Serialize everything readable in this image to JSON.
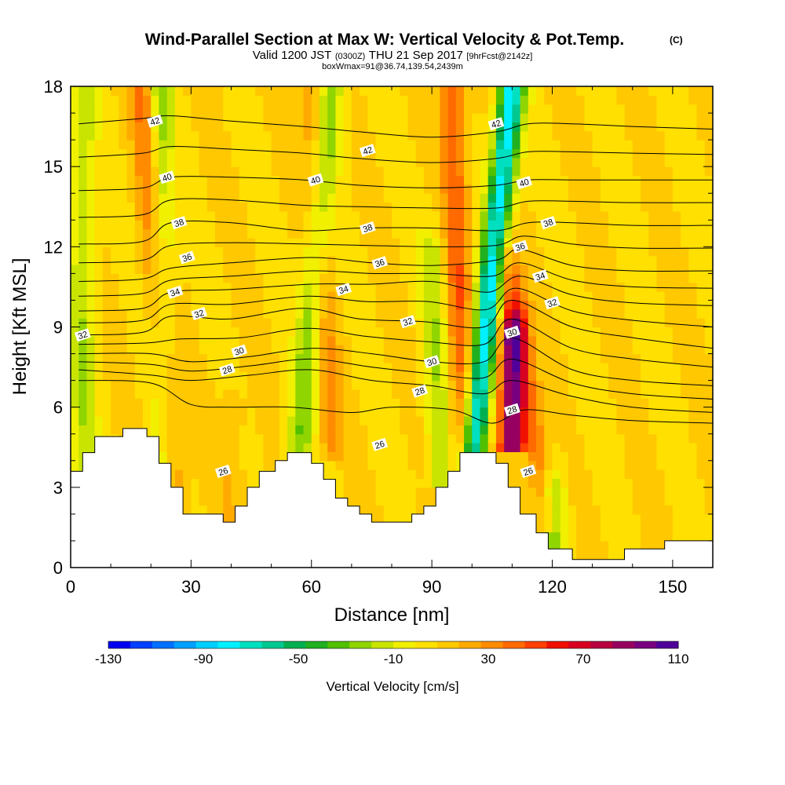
{
  "header": {
    "title": "Wind-Parallel Section at Max W: Vertical Velocity & Pot.Temp.",
    "copyright": "(C)",
    "valid_prefix": "Valid 1200 JST",
    "valid_z": "(0300Z)",
    "valid_date": "THU 21 Sep 2017",
    "forecast": "[9hrFcst@2142z]",
    "boxwmax": "boxWmax=91@36.74,139.54,2439m"
  },
  "chart_data": {
    "type": "heatmap",
    "title": "Wind-Parallel Section at Max W: Vertical Velocity & Pot.Temp.",
    "xlabel": "Distance [nm]",
    "ylabel": "Height [Kft MSL]",
    "xlim": [
      0,
      160
    ],
    "ylim": [
      0,
      18
    ],
    "x_ticks": [
      0,
      30,
      60,
      90,
      120,
      150
    ],
    "y_ticks": [
      0,
      3,
      6,
      9,
      12,
      15,
      18
    ],
    "colorbar": {
      "label": "Vertical Velocity [cm/s]",
      "tick_labels": [
        "-130",
        "-90",
        "-50",
        "-10",
        "30",
        "70",
        "110"
      ],
      "range": [
        -130,
        110
      ],
      "colors": [
        "#0000f0",
        "#0040ff",
        "#0070ff",
        "#00a0ff",
        "#00d0ff",
        "#00f0ff",
        "#00e0c0",
        "#00c890",
        "#00b050",
        "#20b020",
        "#50c000",
        "#90d400",
        "#c8e400",
        "#f0f000",
        "#ffe000",
        "#ffc800",
        "#ffaa00",
        "#ff8c00",
        "#ff6a00",
        "#ff4000",
        "#f01000",
        "#d80020",
        "#b80040",
        "#980060",
        "#780080",
        "#50009a"
      ]
    },
    "updrafts": [
      {
        "x_bottom": 25,
        "y_bottom": 3.0,
        "x_top": 18,
        "y_top": 18,
        "w": 35
      },
      {
        "x_bottom": 98,
        "y_bottom": 4.0,
        "x_top": 95,
        "y_top": 18,
        "w": 35
      },
      {
        "x_bottom": 110,
        "y_bottom": 5.5,
        "x_top": 110,
        "y_top": 9,
        "w": 85
      },
      {
        "x_bottom": 118,
        "y_bottom": 2.5,
        "x_top": 108,
        "y_top": 12,
        "w": 30
      },
      {
        "x_bottom": 65,
        "y_bottom": 5.0,
        "x_top": 60,
        "y_top": 18,
        "w": 20
      },
      {
        "x_bottom": 40,
        "y_bottom": 2.5,
        "x_top": 40,
        "y_top": 6,
        "w": 10
      }
    ],
    "downdrafts": [
      {
        "x_bottom": 100,
        "y_bottom": 4.0,
        "x_top": 110,
        "y_top": 18,
        "w": -90
      },
      {
        "x_bottom": 23,
        "y_bottom": 4.0,
        "x_top": 22,
        "y_top": 18,
        "w": -35
      },
      {
        "x_bottom": 57,
        "y_bottom": 4.5,
        "x_top": 65,
        "y_top": 18,
        "w": -35
      },
      {
        "x_bottom": 92,
        "y_bottom": 4.0,
        "x_top": 90,
        "y_top": 12,
        "w": -25
      },
      {
        "x_bottom": 120,
        "y_bottom": 0.5,
        "x_top": 120,
        "y_top": 3,
        "w": -35
      },
      {
        "x_bottom": 3,
        "y_bottom": 3.0,
        "x_top": 3,
        "y_top": 18,
        "w": -25
      }
    ],
    "terrain": [
      [
        0,
        3.6
      ],
      [
        3,
        3.6
      ],
      [
        3,
        4.3
      ],
      [
        6,
        4.3
      ],
      [
        6,
        4.9
      ],
      [
        13,
        4.9
      ],
      [
        13,
        5.2
      ],
      [
        19,
        5.2
      ],
      [
        19,
        4.9
      ],
      [
        22,
        4.9
      ],
      [
        22,
        3.9
      ],
      [
        25,
        3.9
      ],
      [
        25,
        3.0
      ],
      [
        28,
        3.0
      ],
      [
        28,
        2.0
      ],
      [
        38,
        2.0
      ],
      [
        38,
        1.7
      ],
      [
        41,
        1.7
      ],
      [
        41,
        2.3
      ],
      [
        44,
        2.3
      ],
      [
        44,
        3.0
      ],
      [
        47,
        3.0
      ],
      [
        47,
        3.6
      ],
      [
        51,
        3.6
      ],
      [
        51,
        4.0
      ],
      [
        54,
        4.0
      ],
      [
        54,
        4.3
      ],
      [
        60,
        4.3
      ],
      [
        60,
        3.9
      ],
      [
        63,
        3.9
      ],
      [
        63,
        3.3
      ],
      [
        66,
        3.3
      ],
      [
        66,
        2.6
      ],
      [
        69,
        2.6
      ],
      [
        69,
        2.3
      ],
      [
        72,
        2.3
      ],
      [
        72,
        2.0
      ],
      [
        75,
        2.0
      ],
      [
        75,
        1.7
      ],
      [
        85,
        1.7
      ],
      [
        85,
        2.0
      ],
      [
        88,
        2.0
      ],
      [
        88,
        2.3
      ],
      [
        91,
        2.3
      ],
      [
        91,
        3.0
      ],
      [
        94,
        3.0
      ],
      [
        94,
        3.6
      ],
      [
        97,
        3.6
      ],
      [
        97,
        4.3
      ],
      [
        106,
        4.3
      ],
      [
        106,
        3.9
      ],
      [
        109,
        3.9
      ],
      [
        109,
        3.0
      ],
      [
        112,
        3.0
      ],
      [
        112,
        2.0
      ],
      [
        116,
        2.0
      ],
      [
        116,
        1.3
      ],
      [
        119,
        1.3
      ],
      [
        119,
        0.7
      ],
      [
        125,
        0.7
      ],
      [
        125,
        0.3
      ],
      [
        138,
        0.3
      ],
      [
        138,
        0.7
      ],
      [
        148,
        0.7
      ],
      [
        148,
        1.0
      ],
      [
        160,
        1.0
      ]
    ],
    "theta_levels": [
      26,
      27,
      28,
      29,
      30,
      31,
      32,
      33,
      34,
      35,
      36,
      37,
      38,
      39,
      40,
      41,
      42,
      43,
      44
    ],
    "theta_contours": [
      {
        "theta": 26,
        "label": "26",
        "points": [
          [
            2,
            7.0
          ],
          [
            20,
            6.9
          ],
          [
            30,
            6.1
          ],
          [
            40,
            6.0
          ],
          [
            55,
            6.0
          ],
          [
            70,
            5.8
          ],
          [
            80,
            6.0
          ],
          [
            95,
            5.9
          ],
          [
            105,
            5.4
          ],
          [
            113,
            5.9
          ],
          [
            125,
            5.7
          ],
          [
            140,
            5.5
          ],
          [
            160,
            5.4
          ]
        ]
      },
      {
        "theta": 28,
        "label": "28",
        "points": [
          [
            2,
            7.4
          ],
          [
            20,
            7.2
          ],
          [
            30,
            7.0
          ],
          [
            45,
            7.2
          ],
          [
            60,
            7.4
          ],
          [
            75,
            7.0
          ],
          [
            90,
            6.8
          ],
          [
            103,
            6.5
          ],
          [
            110,
            7.0
          ],
          [
            125,
            6.4
          ],
          [
            140,
            6.0
          ],
          [
            160,
            5.8
          ]
        ]
      },
      {
        "theta": 30,
        "label": "30",
        "points": [
          [
            2,
            8.0
          ],
          [
            20,
            8.0
          ],
          [
            30,
            7.7
          ],
          [
            45,
            7.9
          ],
          [
            60,
            8.2
          ],
          [
            75,
            8.0
          ],
          [
            90,
            7.7
          ],
          [
            103,
            7.7
          ],
          [
            110,
            8.6
          ],
          [
            125,
            7.4
          ],
          [
            140,
            7.0
          ],
          [
            160,
            6.8
          ]
        ]
      },
      {
        "theta": 32,
        "label": "32",
        "points": [
          [
            2,
            8.7
          ],
          [
            18,
            8.8
          ],
          [
            25,
            9.4
          ],
          [
            40,
            9.3
          ],
          [
            58,
            9.7
          ],
          [
            72,
            9.3
          ],
          [
            88,
            9.2
          ],
          [
            103,
            9.0
          ],
          [
            110,
            10.0
          ],
          [
            125,
            9.0
          ],
          [
            140,
            8.6
          ],
          [
            160,
            8.2
          ]
        ]
      },
      {
        "theta": 34,
        "label": "34",
        "points": [
          [
            2,
            9.6
          ],
          [
            18,
            9.7
          ],
          [
            25,
            10.3
          ],
          [
            40,
            10.4
          ],
          [
            60,
            10.6
          ],
          [
            75,
            10.6
          ],
          [
            90,
            10.7
          ],
          [
            104,
            10.3
          ],
          [
            112,
            10.9
          ],
          [
            125,
            10.2
          ],
          [
            140,
            9.9
          ],
          [
            160,
            9.8
          ]
        ]
      },
      {
        "theta": 36,
        "label": "36",
        "points": [
          [
            2,
            10.7
          ],
          [
            18,
            10.8
          ],
          [
            25,
            11.2
          ],
          [
            40,
            11.4
          ],
          [
            60,
            11.6
          ],
          [
            75,
            11.4
          ],
          [
            90,
            11.3
          ],
          [
            106,
            11.5
          ],
          [
            112,
            11.9
          ],
          [
            125,
            11.3
          ],
          [
            140,
            11.1
          ],
          [
            160,
            11.1
          ]
        ]
      },
      {
        "theta": 38,
        "label": "38",
        "points": [
          [
            2,
            12.1
          ],
          [
            18,
            12.2
          ],
          [
            25,
            12.9
          ],
          [
            40,
            12.9
          ],
          [
            58,
            12.6
          ],
          [
            72,
            12.7
          ],
          [
            90,
            12.7
          ],
          [
            106,
            12.6
          ],
          [
            114,
            12.9
          ],
          [
            125,
            12.9
          ],
          [
            140,
            12.8
          ],
          [
            160,
            12.8
          ]
        ]
      },
      {
        "theta": 40,
        "label": "40",
        "points": [
          [
            2,
            14.1
          ],
          [
            18,
            14.2
          ],
          [
            25,
            14.6
          ],
          [
            40,
            14.6
          ],
          [
            58,
            14.5
          ],
          [
            72,
            14.3
          ],
          [
            90,
            14.2
          ],
          [
            106,
            14.3
          ],
          [
            114,
            14.5
          ],
          [
            125,
            14.5
          ],
          [
            140,
            14.5
          ],
          [
            160,
            14.5
          ]
        ]
      },
      {
        "theta": 42,
        "label": "42",
        "points": [
          [
            2,
            16.6
          ],
          [
            18,
            16.8
          ],
          [
            25,
            16.9
          ],
          [
            40,
            16.7
          ],
          [
            58,
            16.5
          ],
          [
            72,
            16.3
          ],
          [
            90,
            16.1
          ],
          [
            106,
            16.3
          ],
          [
            114,
            16.6
          ],
          [
            125,
            16.6
          ],
          [
            140,
            16.5
          ],
          [
            160,
            16.4
          ]
        ]
      }
    ],
    "theta_labels": [
      {
        "text": "26",
        "x": 38,
        "y": 3.6
      },
      {
        "text": "26",
        "x": 77,
        "y": 4.6
      },
      {
        "text": "26",
        "x": 114,
        "y": 3.6
      },
      {
        "text": "28",
        "x": 39,
        "y": 7.4
      },
      {
        "text": "28",
        "x": 87,
        "y": 6.6
      },
      {
        "text": "28",
        "x": 110,
        "y": 5.9
      },
      {
        "text": "30",
        "x": 42,
        "y": 8.1
      },
      {
        "text": "30",
        "x": 90,
        "y": 7.7
      },
      {
        "text": "30",
        "x": 110,
        "y": 8.8
      },
      {
        "text": "32",
        "x": 3,
        "y": 8.7
      },
      {
        "text": "32",
        "x": 32,
        "y": 9.5
      },
      {
        "text": "32",
        "x": 84,
        "y": 9.2
      },
      {
        "text": "32",
        "x": 120,
        "y": 9.9
      },
      {
        "text": "34",
        "x": 26,
        "y": 10.3
      },
      {
        "text": "34",
        "x": 68,
        "y": 10.4
      },
      {
        "text": "34",
        "x": 117,
        "y": 10.9
      },
      {
        "text": "36",
        "x": 29,
        "y": 11.6
      },
      {
        "text": "36",
        "x": 77,
        "y": 11.4
      },
      {
        "text": "36",
        "x": 112,
        "y": 12.0
      },
      {
        "text": "38",
        "x": 27,
        "y": 12.9
      },
      {
        "text": "38",
        "x": 74,
        "y": 12.7
      },
      {
        "text": "38",
        "x": 119,
        "y": 12.9
      },
      {
        "text": "40",
        "x": 24,
        "y": 14.6
      },
      {
        "text": "40",
        "x": 61,
        "y": 14.5
      },
      {
        "text": "40",
        "x": 113,
        "y": 14.4
      },
      {
        "text": "42",
        "x": 21,
        "y": 16.7
      },
      {
        "text": "42",
        "x": 74,
        "y": 15.6
      },
      {
        "text": "42",
        "x": 106,
        "y": 16.6
      }
    ]
  }
}
